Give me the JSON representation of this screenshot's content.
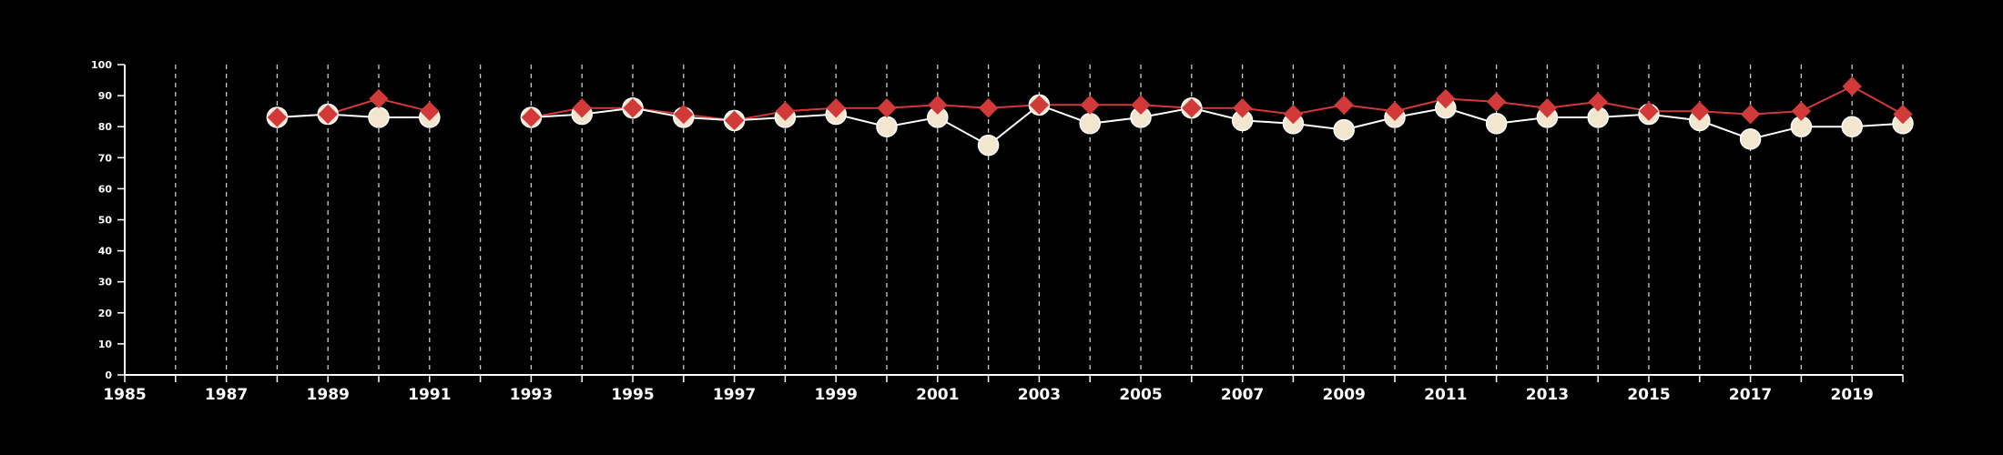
{
  "chart_data": {
    "type": "line",
    "title": "",
    "xlabel": "",
    "ylabel": "",
    "xlim": [
      1985,
      2020
    ],
    "ylim": [
      0,
      100
    ],
    "y_ticks": [
      0,
      10,
      20,
      30,
      40,
      50,
      60,
      70,
      80,
      90,
      100
    ],
    "x_tick_labels": [
      1985,
      1987,
      1989,
      1991,
      1993,
      1995,
      1997,
      1999,
      2001,
      2003,
      2005,
      2007,
      2009,
      2011,
      2013,
      2015,
      2017,
      2019
    ],
    "grid": "vertical dashed lines at each year",
    "legend": "none",
    "colors": {
      "background": "#000000",
      "axis": "#ffffff",
      "grid": "#cccccc",
      "series_red": "#d23a3a",
      "series_cream": "#f3e6cf"
    },
    "series": [
      {
        "marker": "diamond",
        "color": "#d23a3a",
        "points": [
          [
            1988,
            83
          ],
          [
            1989,
            84
          ],
          [
            1990,
            89
          ],
          [
            1991,
            85
          ],
          [
            1993,
            83
          ],
          [
            1994,
            86
          ],
          [
            1995,
            86
          ],
          [
            1996,
            84
          ],
          [
            1997,
            82
          ],
          [
            1998,
            85
          ],
          [
            1999,
            86
          ],
          [
            2000,
            86
          ],
          [
            2001,
            87
          ],
          [
            2002,
            86
          ],
          [
            2003,
            87
          ],
          [
            2004,
            87
          ],
          [
            2005,
            87
          ],
          [
            2006,
            86
          ],
          [
            2007,
            86
          ],
          [
            2008,
            84
          ],
          [
            2009,
            87
          ],
          [
            2010,
            85
          ],
          [
            2011,
            89
          ],
          [
            2012,
            88
          ],
          [
            2013,
            86
          ],
          [
            2014,
            88
          ],
          [
            2015,
            85
          ],
          [
            2016,
            85
          ],
          [
            2017,
            84
          ],
          [
            2018,
            85
          ],
          [
            2019,
            93
          ],
          [
            2020,
            84
          ]
        ]
      },
      {
        "marker": "circle",
        "color": "#f3e6cf",
        "points": [
          [
            1988,
            83
          ],
          [
            1989,
            84
          ],
          [
            1990,
            83
          ],
          [
            1991,
            83
          ],
          [
            1993,
            83
          ],
          [
            1994,
            84
          ],
          [
            1995,
            86
          ],
          [
            1996,
            83
          ],
          [
            1997,
            82
          ],
          [
            1998,
            83
          ],
          [
            1999,
            84
          ],
          [
            2000,
            80
          ],
          [
            2001,
            83
          ],
          [
            2002,
            74
          ],
          [
            2003,
            87
          ],
          [
            2004,
            81
          ],
          [
            2005,
            83
          ],
          [
            2006,
            86
          ],
          [
            2007,
            82
          ],
          [
            2008,
            81
          ],
          [
            2009,
            79
          ],
          [
            2010,
            83
          ],
          [
            2011,
            86
          ],
          [
            2012,
            81
          ],
          [
            2013,
            83
          ],
          [
            2014,
            83
          ],
          [
            2015,
            84
          ],
          [
            2016,
            82
          ],
          [
            2017,
            76
          ],
          [
            2018,
            80
          ],
          [
            2019,
            80
          ],
          [
            2020,
            81
          ]
        ]
      }
    ]
  }
}
